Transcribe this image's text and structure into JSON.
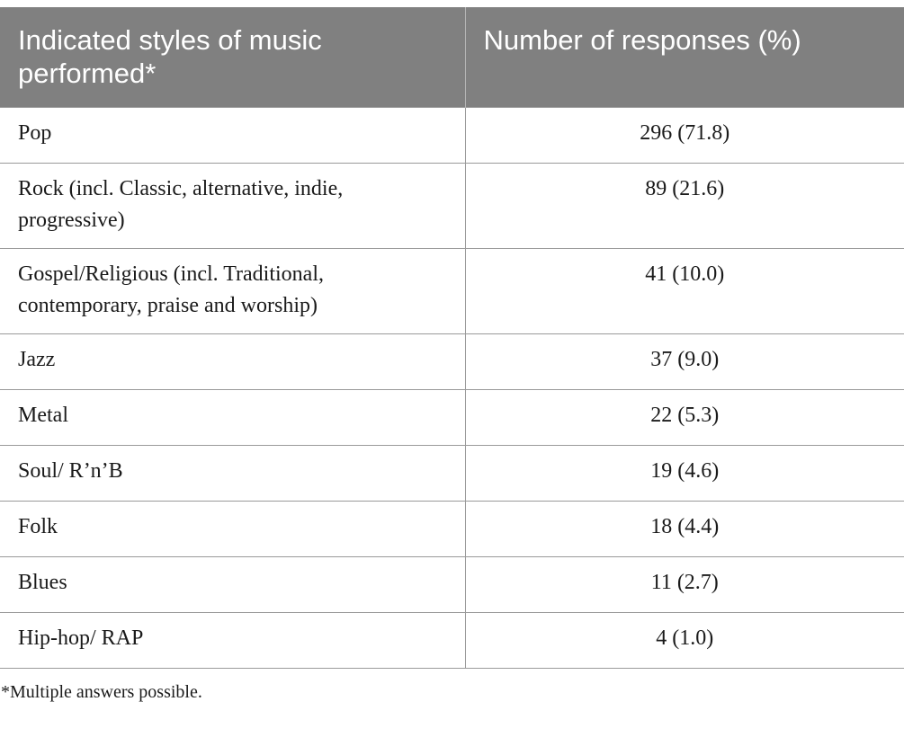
{
  "table": {
    "headers": [
      "Indicated styles of music performed*",
      "Number of responses (%)"
    ],
    "rows": [
      {
        "style": "Pop",
        "responses": "296 (71.8)"
      },
      {
        "style": "Rock (incl. Classic, alternative, indie, progressive)",
        "responses": "89 (21.6)"
      },
      {
        "style": "Gospel/Religious (incl. Traditional, contemporary, praise and worship)",
        "responses": "41 (10.0)"
      },
      {
        "style": "Jazz",
        "responses": "37 (9.0)"
      },
      {
        "style": "Metal",
        "responses": "22 (5.3)"
      },
      {
        "style": "Soul/ R’n’B",
        "responses": "19 (4.6)"
      },
      {
        "style": "Folk",
        "responses": "18 (4.4)"
      },
      {
        "style": "Blues",
        "responses": "11 (2.7)"
      },
      {
        "style": "Hip-hop/ RAP",
        "responses": "4 (1.0)"
      }
    ]
  },
  "footnote": "*Multiple answers possible."
}
